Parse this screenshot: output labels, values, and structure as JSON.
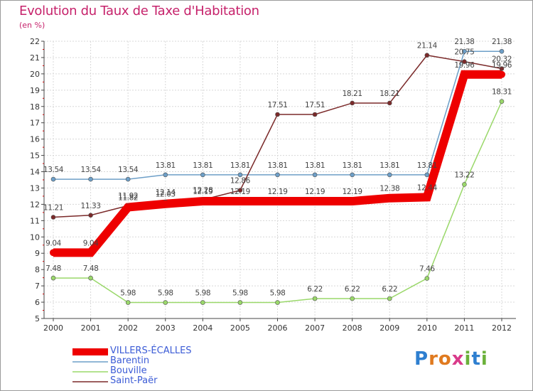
{
  "title": "Evolution du Taux de Taxe d'Habitation",
  "unit": "(en %)",
  "logo": {
    "text": "Proxiti",
    "letters": [
      "P",
      "r",
      "o",
      "x",
      "i",
      "t",
      "i"
    ],
    "colors": [
      "#2e7fd0",
      "#e07a1f",
      "#e07a1f",
      "#d93a8a",
      "#6bb13a",
      "#2e7fd0",
      "#6bb13a"
    ]
  },
  "chart_data": {
    "type": "line",
    "title": "Evolution du Taux de Taxe d'Habitation",
    "ylabel": "(en %)",
    "xlabel": "",
    "categories": [
      "2000",
      "2001",
      "2002",
      "2003",
      "2004",
      "2005",
      "2006",
      "2007",
      "2008",
      "2009",
      "2010",
      "2011",
      "2012"
    ],
    "ylim": [
      5,
      22
    ],
    "yticks": [
      5,
      6,
      7,
      8,
      9,
      10,
      11,
      12,
      13,
      14,
      15,
      16,
      17,
      18,
      19,
      20,
      21,
      22
    ],
    "grid": true,
    "legend_position": "bottom-left",
    "series": [
      {
        "name": "VILLERS-ÉCALLES",
        "color": "#ee0000",
        "width": 12,
        "values": [
          9.04,
          9.04,
          11.82,
          12.03,
          12.19,
          12.19,
          12.19,
          12.19,
          12.19,
          12.38,
          12.44,
          19.96,
          19.96
        ],
        "labels": [
          "9.04",
          "9.04",
          "11.82",
          "12.03",
          "12.19",
          "12.19",
          "12.19",
          "12.19",
          "12.19",
          "12.38",
          "12.44",
          "19.96",
          "19.96"
        ]
      },
      {
        "name": "Barentin",
        "color": "#6d9fc8",
        "width": 1.5,
        "values": [
          13.54,
          13.54,
          13.54,
          13.81,
          13.81,
          13.81,
          13.81,
          13.81,
          13.81,
          13.81,
          13.81,
          21.38,
          21.38
        ],
        "labels": [
          "13.54",
          "13.54",
          "13.54",
          "13.81",
          "13.81",
          "13.81",
          "13.81",
          "13.81",
          "13.81",
          "13.81",
          "13.81",
          "21.38",
          "21.38"
        ]
      },
      {
        "name": "Bouville",
        "color": "#9ad86a",
        "width": 1.5,
        "values": [
          7.48,
          7.48,
          5.98,
          5.98,
          5.98,
          5.98,
          5.98,
          6.22,
          6.22,
          6.22,
          7.46,
          13.22,
          18.31
        ],
        "labels": [
          "7.48",
          "7.48",
          "5.98",
          "5.98",
          "5.98",
          "5.98",
          "5.98",
          "6.22",
          "6.22",
          "6.22",
          "7.46",
          "13.22",
          "18.31"
        ]
      },
      {
        "name": "Saint-Paër",
        "color": "#7b2a2a",
        "width": 1.5,
        "values": [
          11.21,
          11.33,
          11.92,
          12.14,
          12.28,
          12.86,
          17.51,
          17.51,
          18.21,
          18.21,
          21.14,
          20.75,
          20.32
        ],
        "labels": [
          "11.21",
          "11.33",
          "11.92",
          "12.14",
          "12.28",
          "12.86",
          "17.51",
          "17.51",
          "18.21",
          "18.21",
          "21.14",
          "20.75",
          "20.32"
        ]
      }
    ]
  }
}
